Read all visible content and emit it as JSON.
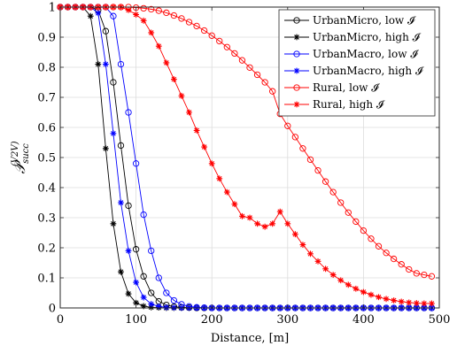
{
  "chart_data": {
    "type": "line",
    "xlabel": "Distance, [m]",
    "ylabel_main": "𝒫",
    "ylabel_sub": "succ",
    "ylabel_sup": "(V2V)",
    "xlim": [
      0,
      500
    ],
    "ylim": [
      0,
      1
    ],
    "xticks": [
      0,
      100,
      200,
      300,
      400,
      500
    ],
    "yticks": [
      0,
      0.1,
      0.2,
      0.3,
      0.4,
      0.5,
      0.6,
      0.7,
      0.8,
      0.9,
      1
    ],
    "xtick_labels": [
      "0",
      "100",
      "200",
      "300",
      "400",
      "500"
    ],
    "ytick_labels": [
      "0",
      "0.1",
      "0.2",
      "0.3",
      "0.4",
      "0.5",
      "0.6",
      "0.7",
      "0.8",
      "0.9",
      "1"
    ],
    "grid": true,
    "legend_position": "top-right",
    "series": [
      {
        "name": "UrbanMicro, low 𝓘",
        "color": "#000000",
        "marker": "circle",
        "x": [
          0,
          10,
          20,
          30,
          40,
          50,
          60,
          70,
          80,
          90,
          100,
          110,
          120,
          130,
          140,
          150,
          160,
          170,
          180,
          190,
          200,
          210,
          220,
          230,
          240,
          250,
          260,
          270,
          280,
          290,
          300,
          310,
          320,
          330,
          340,
          350,
          360,
          370,
          380,
          390,
          400,
          410,
          420,
          430,
          440,
          450,
          460,
          470,
          480,
          490
        ],
        "y": [
          1,
          1,
          1,
          1,
          1,
          0.99,
          0.92,
          0.75,
          0.54,
          0.34,
          0.195,
          0.105,
          0.05,
          0.022,
          0.01,
          0.004,
          0.002,
          0.001,
          0,
          0,
          0,
          0,
          0,
          0,
          0,
          0,
          0,
          0,
          0,
          0,
          0,
          0,
          0,
          0,
          0,
          0,
          0,
          0,
          0,
          0,
          0,
          0,
          0,
          0,
          0,
          0,
          0,
          0,
          0,
          0
        ]
      },
      {
        "name": "UrbanMicro, high 𝓘",
        "color": "#000000",
        "marker": "star",
        "x": [
          0,
          10,
          20,
          30,
          40,
          50,
          60,
          70,
          80,
          90,
          100,
          110,
          120,
          130,
          140,
          150,
          160,
          170,
          180,
          190,
          200,
          210,
          220,
          230,
          240,
          250,
          260,
          270,
          280,
          290,
          300,
          310,
          320,
          330,
          340,
          350,
          360,
          370,
          380,
          390,
          400,
          410,
          420,
          430,
          440,
          450,
          460,
          470,
          480,
          490
        ],
        "y": [
          1,
          1,
          1,
          1,
          0.97,
          0.81,
          0.53,
          0.28,
          0.12,
          0.047,
          0.017,
          0.006,
          0.002,
          0.001,
          0,
          0,
          0,
          0,
          0,
          0,
          0,
          0,
          0,
          0,
          0,
          0,
          0,
          0,
          0,
          0,
          0,
          0,
          0,
          0,
          0,
          0,
          0,
          0,
          0,
          0,
          0,
          0,
          0,
          0,
          0,
          0,
          0,
          0,
          0,
          0
        ]
      },
      {
        "name": "UrbanMacro, low 𝓘",
        "color": "#0000ff",
        "marker": "circle",
        "x": [
          0,
          10,
          20,
          30,
          40,
          50,
          60,
          70,
          80,
          90,
          100,
          110,
          120,
          130,
          140,
          150,
          160,
          170,
          180,
          190,
          200,
          210,
          220,
          230,
          240,
          250,
          260,
          270,
          280,
          290,
          300,
          310,
          320,
          330,
          340,
          350,
          360,
          370,
          380,
          390,
          400,
          410,
          420,
          430,
          440,
          450,
          460,
          470,
          480,
          490
        ],
        "y": [
          1,
          1,
          1,
          1,
          1,
          1,
          1,
          0.97,
          0.81,
          0.65,
          0.48,
          0.31,
          0.19,
          0.1,
          0.05,
          0.025,
          0.012,
          0.005,
          0.002,
          0.001,
          0,
          0,
          0,
          0,
          0,
          0,
          0,
          0,
          0,
          0,
          0,
          0,
          0,
          0,
          0,
          0,
          0,
          0,
          0,
          0,
          0,
          0,
          0,
          0,
          0,
          0,
          0,
          0,
          0,
          0
        ]
      },
      {
        "name": "UrbanMacro, high 𝓘",
        "color": "#0000ff",
        "marker": "star",
        "x": [
          0,
          10,
          20,
          30,
          40,
          50,
          60,
          70,
          80,
          90,
          100,
          110,
          120,
          130,
          140,
          150,
          160,
          170,
          180,
          190,
          200,
          210,
          220,
          230,
          240,
          250,
          260,
          270,
          280,
          290,
          300,
          310,
          320,
          330,
          340,
          350,
          360,
          370,
          380,
          390,
          400,
          410,
          420,
          430,
          440,
          450,
          460,
          470,
          480,
          490
        ],
        "y": [
          1,
          1,
          1,
          1,
          1,
          0.98,
          0.81,
          0.58,
          0.35,
          0.19,
          0.085,
          0.035,
          0.013,
          0.005,
          0.002,
          0.001,
          0,
          0,
          0,
          0,
          0,
          0,
          0,
          0,
          0,
          0,
          0,
          0,
          0,
          0,
          0,
          0,
          0,
          0,
          0,
          0,
          0,
          0,
          0,
          0,
          0,
          0,
          0,
          0,
          0,
          0,
          0,
          0,
          0,
          0
        ]
      },
      {
        "name": "Rural, low 𝓘",
        "color": "#ff0000",
        "marker": "circle",
        "x": [
          0,
          10,
          20,
          30,
          40,
          50,
          60,
          70,
          80,
          90,
          100,
          110,
          120,
          130,
          140,
          150,
          160,
          170,
          180,
          190,
          200,
          210,
          220,
          230,
          240,
          250,
          260,
          270,
          280,
          290,
          300,
          310,
          320,
          330,
          340,
          350,
          360,
          370,
          380,
          390,
          400,
          410,
          420,
          430,
          440,
          450,
          460,
          470,
          480,
          490
        ],
        "y": [
          1,
          1,
          1,
          1,
          1,
          1,
          1,
          1,
          1,
          1,
          0.998,
          0.996,
          0.993,
          0.988,
          0.981,
          0.972,
          0.962,
          0.95,
          0.937,
          0.922,
          0.905,
          0.887,
          0.867,
          0.846,
          0.823,
          0.799,
          0.775,
          0.75,
          0.72,
          0.645,
          0.605,
          0.568,
          0.53,
          0.493,
          0.457,
          0.42,
          0.385,
          0.35,
          0.317,
          0.287,
          0.257,
          0.23,
          0.205,
          0.183,
          0.163,
          0.145,
          0.128,
          0.115,
          0.11,
          0.105
        ]
      },
      {
        "name": "Rural, high 𝓘",
        "color": "#ff0000",
        "marker": "star",
        "x": [
          0,
          10,
          20,
          30,
          40,
          50,
          60,
          70,
          80,
          90,
          100,
          110,
          120,
          130,
          140,
          150,
          160,
          170,
          180,
          190,
          200,
          210,
          220,
          230,
          240,
          250,
          260,
          270,
          280,
          290,
          300,
          310,
          320,
          330,
          340,
          350,
          360,
          370,
          380,
          390,
          400,
          410,
          420,
          430,
          440,
          450,
          460,
          470,
          480,
          490
        ],
        "y": [
          1,
          1,
          1,
          1,
          1,
          1,
          1,
          1,
          1,
          0.99,
          0.975,
          0.955,
          0.915,
          0.87,
          0.815,
          0.76,
          0.705,
          0.65,
          0.59,
          0.535,
          0.48,
          0.43,
          0.385,
          0.345,
          0.305,
          0.3,
          0.28,
          0.27,
          0.28,
          0.32,
          0.28,
          0.245,
          0.21,
          0.18,
          0.155,
          0.13,
          0.11,
          0.092,
          0.077,
          0.064,
          0.053,
          0.044,
          0.036,
          0.03,
          0.025,
          0.021,
          0.018,
          0.016,
          0.015,
          0.015
        ]
      }
    ]
  }
}
